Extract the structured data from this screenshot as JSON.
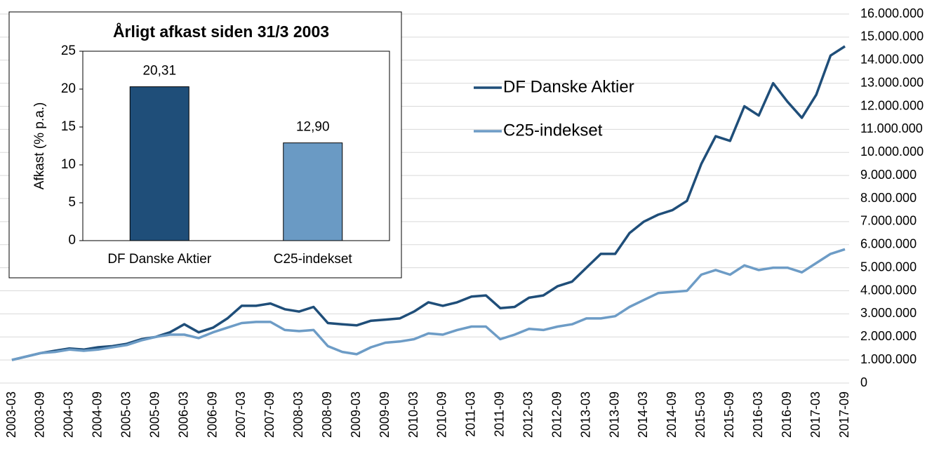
{
  "chart_data": [
    {
      "type": "line",
      "x": [
        "2003-03",
        null,
        "2003-09",
        null,
        "2004-03",
        null,
        "2004-09",
        null,
        "2005-03",
        null,
        "2005-09",
        null,
        "2006-03",
        null,
        "2006-09",
        null,
        "2007-03",
        null,
        "2007-09",
        null,
        "2008-03",
        null,
        "2008-09",
        null,
        "2009-03",
        null,
        "2009-09",
        null,
        "2010-03",
        null,
        "2010-09",
        null,
        "2011-03",
        null,
        "2011-09",
        null,
        "2012-03",
        null,
        "2012-09",
        null,
        "2013-03",
        null,
        "2013-09",
        null,
        "2014-03",
        null,
        "2014-09",
        null,
        "2015-03",
        null,
        "2015-09",
        null,
        "2016-03",
        null,
        "2016-09",
        null,
        "2017-03",
        null,
        "2017-09"
      ],
      "series": [
        {
          "name": "DF Danske Aktier",
          "color": "#1f4e79",
          "values": [
            1000000,
            1150000,
            1300000,
            1400000,
            1500000,
            1450000,
            1550000,
            1600000,
            1700000,
            1900000,
            2000000,
            2200000,
            2550000,
            2200000,
            2400000,
            2800000,
            3350000,
            3350000,
            3450000,
            3200000,
            3100000,
            3300000,
            2600000,
            2550000,
            2500000,
            2700000,
            2750000,
            2800000,
            3100000,
            3500000,
            3350000,
            3500000,
            3750000,
            3800000,
            3250000,
            3300000,
            3700000,
            3800000,
            4200000,
            4400000,
            5000000,
            5600000,
            5600000,
            6500000,
            7000000,
            7300000,
            7500000,
            7900000,
            9500000,
            10700000,
            10500000,
            12000000,
            11600000,
            13000000,
            12200000,
            11500000,
            12500000,
            14200000,
            14600000
          ]
        },
        {
          "name": "C25-indekset",
          "color": "#6d9cc6",
          "values": [
            1000000,
            1150000,
            1300000,
            1350000,
            1450000,
            1400000,
            1450000,
            1550000,
            1650000,
            1850000,
            2000000,
            2100000,
            2100000,
            1950000,
            2200000,
            2400000,
            2600000,
            2650000,
            2650000,
            2300000,
            2250000,
            2300000,
            1600000,
            1350000,
            1250000,
            1550000,
            1750000,
            1800000,
            1900000,
            2150000,
            2100000,
            2300000,
            2450000,
            2450000,
            1900000,
            2100000,
            2350000,
            2300000,
            2450000,
            2550000,
            2800000,
            2800000,
            2900000,
            3300000,
            3600000,
            3900000,
            3950000,
            4000000,
            4700000,
            4900000,
            4700000,
            5100000,
            4900000,
            5000000,
            5000000,
            4800000,
            5200000,
            5600000,
            5800000
          ]
        }
      ],
      "ylim": [
        0,
        16000000
      ],
      "yticks": [
        0,
        {
          "value": 1000000,
          "label": "1.000.000"
        },
        {
          "value": 2000000,
          "label": "2.000.000"
        },
        {
          "value": 3000000,
          "label": "3.000.000"
        },
        {
          "value": 4000000,
          "label": "4.000.000"
        },
        {
          "value": 5000000,
          "label": "5.000.000"
        },
        {
          "value": 6000000,
          "label": "6.000.000"
        },
        {
          "value": 7000000,
          "label": "7.000.000"
        },
        {
          "value": 8000000,
          "label": "8.000.000"
        },
        {
          "value": 9000000,
          "label": "9.000.000"
        },
        {
          "value": 10000000,
          "label": "10.000.000"
        },
        {
          "value": 11000000,
          "label": "11.000.000"
        },
        {
          "value": 12000000,
          "label": "12.000.000"
        },
        {
          "value": 13000000,
          "label": "13.000.000"
        },
        {
          "value": 14000000,
          "label": "14.000.000"
        },
        {
          "value": 15000000,
          "label": "15.000.000"
        },
        {
          "value": 16000000,
          "label": "16.000.000"
        }
      ],
      "y_axis_side": "right",
      "grid": true,
      "legend": "center"
    },
    {
      "type": "bar",
      "title": "Årligt afkast siden 31/3 2003",
      "y_label": "Afkast (% p.a.)",
      "categories": [
        "DF Danske Aktier",
        "C25-indekset"
      ],
      "values": [
        20.31,
        12.9
      ],
      "value_labels": [
        "20,31",
        "12,90"
      ],
      "colors": [
        "#1f4e79",
        "#6a9ac4"
      ],
      "ylim": [
        0,
        25
      ],
      "yticks": [
        0,
        5,
        10,
        15,
        20,
        25
      ]
    }
  ]
}
